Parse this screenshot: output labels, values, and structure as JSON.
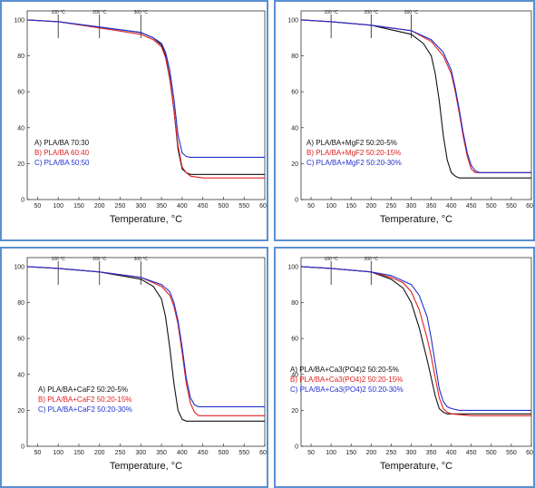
{
  "chart_data": [
    {
      "type": "line",
      "xlabel": "Temperature, °C",
      "xlim": [
        25,
        600
      ],
      "ylim": [
        0,
        105
      ],
      "xticks": [
        50,
        100,
        150,
        200,
        250,
        300,
        350,
        400,
        450,
        500,
        550,
        600
      ],
      "yticks": [
        0,
        20,
        40,
        60,
        80,
        100
      ],
      "series": [
        {
          "name": "A) PLA/BA 70:30",
          "color": "#111111",
          "x": [
            25,
            100,
            200,
            300,
            330,
            350,
            360,
            370,
            380,
            390,
            400,
            410,
            420,
            450,
            500,
            550,
            600
          ],
          "y": [
            100,
            99,
            96,
            93,
            90,
            86,
            80,
            68,
            50,
            28,
            17,
            15,
            14,
            14,
            14,
            14,
            14
          ]
        },
        {
          "name": "B) PLA/BA 60:40",
          "color": "#e02020",
          "x": [
            25,
            100,
            200,
            300,
            330,
            350,
            360,
            370,
            380,
            390,
            400,
            410,
            420,
            450,
            500,
            550,
            600
          ],
          "y": [
            100,
            99,
            95.5,
            92,
            89,
            85,
            79,
            67,
            50,
            30,
            18,
            15,
            13,
            12,
            12,
            12,
            12
          ]
        },
        {
          "name": "C) PLA/BA 50:50",
          "color": "#2030d0",
          "x": [
            25,
            100,
            200,
            300,
            330,
            350,
            360,
            370,
            380,
            390,
            400,
            410,
            420,
            450,
            500,
            550,
            600
          ],
          "y": [
            100,
            99,
            96,
            93,
            90,
            87,
            82,
            72,
            56,
            36,
            26,
            24,
            23.5,
            23.5,
            23.5,
            23.5,
            23.5
          ]
        }
      ],
      "temp_markers": [
        "100 °C",
        "200 °C",
        "300 °C"
      ]
    },
    {
      "type": "line",
      "xlabel": "Temperature, °C",
      "xlim": [
        25,
        600
      ],
      "ylim": [
        0,
        105
      ],
      "xticks": [
        50,
        100,
        150,
        200,
        250,
        300,
        350,
        400,
        450,
        500,
        550,
        600
      ],
      "yticks": [
        0,
        20,
        40,
        60,
        80,
        100
      ],
      "series": [
        {
          "name": "A) PLA/BA+MgF2 50:20-5%",
          "color": "#111111",
          "x": [
            25,
            100,
            200,
            300,
            330,
            350,
            360,
            370,
            380,
            390,
            400,
            410,
            420,
            450,
            500,
            550,
            600
          ],
          "y": [
            100,
            99,
            97,
            92,
            87,
            80,
            70,
            55,
            36,
            22,
            15,
            13,
            12,
            12,
            12,
            12,
            12
          ]
        },
        {
          "name": "B) PLA/BA+MgF2 50:20-15%",
          "color": "#e02020",
          "x": [
            25,
            100,
            200,
            300,
            350,
            380,
            400,
            410,
            420,
            430,
            440,
            450,
            460,
            470,
            500,
            550,
            600
          ],
          "y": [
            100,
            99,
            97,
            94,
            88,
            80,
            70,
            60,
            48,
            35,
            24,
            17,
            15,
            15,
            15,
            15,
            15
          ]
        },
        {
          "name": "C) PLA/BA+MgF2 50:20-30%",
          "color": "#2030d0",
          "x": [
            25,
            100,
            200,
            300,
            350,
            380,
            400,
            410,
            420,
            430,
            440,
            450,
            460,
            470,
            500,
            550,
            600
          ],
          "y": [
            100,
            99,
            97,
            94,
            89,
            82,
            72,
            62,
            50,
            37,
            26,
            19,
            16,
            15,
            15,
            15,
            15
          ]
        }
      ],
      "temp_markers": [
        "100 °C",
        "200 °C",
        "300 °C"
      ]
    },
    {
      "type": "line",
      "xlabel": "Temperature, °C",
      "xlim": [
        25,
        600
      ],
      "ylim": [
        0,
        105
      ],
      "xticks": [
        50,
        100,
        150,
        200,
        250,
        300,
        350,
        400,
        450,
        500,
        550,
        600
      ],
      "yticks": [
        0,
        20,
        40,
        60,
        80,
        100
      ],
      "series": [
        {
          "name": "A) PLA/BA+CaF2 50:20-5%",
          "color": "#111111",
          "x": [
            25,
            100,
            200,
            300,
            330,
            350,
            360,
            370,
            380,
            390,
            400,
            410,
            420,
            450,
            500,
            550,
            600
          ],
          "y": [
            100,
            99,
            97,
            93,
            89,
            82,
            72,
            55,
            35,
            20,
            15,
            14,
            14,
            14,
            14,
            14,
            14
          ]
        },
        {
          "name": "B) PLA/BA+CaF2 50:20-15%",
          "color": "#e02020",
          "x": [
            25,
            100,
            200,
            300,
            350,
            370,
            380,
            390,
            400,
            410,
            420,
            430,
            440,
            450,
            500,
            550,
            600
          ],
          "y": [
            100,
            99,
            97,
            94,
            89,
            84,
            78,
            68,
            52,
            35,
            24,
            19,
            17,
            17,
            17,
            17,
            17
          ]
        },
        {
          "name": "C) PLA/BA+CaF2 50:20-30%",
          "color": "#2030d0",
          "x": [
            25,
            100,
            200,
            300,
            350,
            370,
            380,
            390,
            400,
            410,
            420,
            430,
            440,
            450,
            500,
            550,
            600
          ],
          "y": [
            100,
            99,
            97,
            94,
            90,
            86,
            80,
            70,
            55,
            38,
            27,
            23,
            22,
            22,
            22,
            22,
            22
          ]
        }
      ],
      "temp_markers": [
        "100 °C",
        "200 °C",
        "300 °C"
      ]
    },
    {
      "type": "line",
      "xlabel": "Temperature, °C",
      "xlim": [
        25,
        600
      ],
      "ylim": [
        0,
        105
      ],
      "xticks": [
        50,
        100,
        150,
        200,
        250,
        300,
        350,
        400,
        450,
        500,
        550,
        600
      ],
      "yticks": [
        0,
        20,
        40,
        60,
        80,
        100
      ],
      "series": [
        {
          "name": "A) PLA/BA+Ca3(PO4)2 50:20-5%",
          "color": "#111111",
          "x": [
            25,
            100,
            200,
            250,
            280,
            300,
            320,
            340,
            350,
            360,
            370,
            380,
            390,
            400,
            450,
            500,
            600
          ],
          "y": [
            100,
            99,
            97,
            93,
            88,
            80,
            66,
            48,
            38,
            28,
            21,
            19,
            18,
            18,
            18,
            18,
            18
          ]
        },
        {
          "name": "B) PLA/BA+Ca3(PO4)2 50:20-15%",
          "color": "#e02020",
          "x": [
            25,
            100,
            200,
            250,
            280,
            300,
            320,
            340,
            350,
            360,
            370,
            380,
            390,
            400,
            450,
            500,
            600
          ],
          "y": [
            100,
            99,
            97,
            94,
            91,
            86,
            76,
            60,
            50,
            38,
            27,
            21,
            19,
            18,
            17,
            17,
            17
          ]
        },
        {
          "name": "C) PLA/BA+Ca3(PO4)2 50:20-30%",
          "color": "#2030d0",
          "x": [
            25,
            100,
            200,
            250,
            300,
            320,
            340,
            350,
            360,
            370,
            380,
            390,
            400,
            420,
            450,
            500,
            600
          ],
          "y": [
            100,
            99,
            97,
            95,
            90,
            84,
            72,
            60,
            46,
            32,
            25,
            22,
            21,
            20,
            20,
            20,
            20
          ]
        }
      ],
      "temp_markers": [
        "100 °C",
        "200 °C"
      ]
    }
  ]
}
